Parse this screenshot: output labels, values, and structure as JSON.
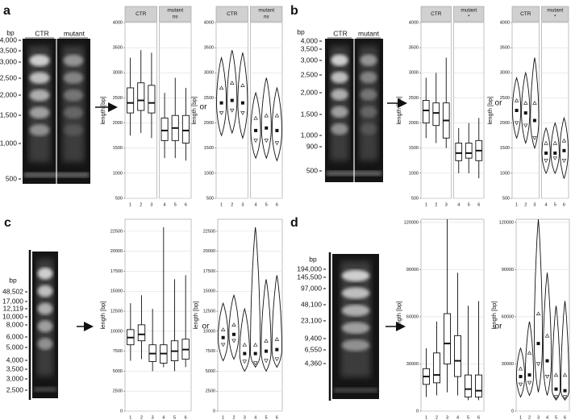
{
  "panels": [
    {
      "label": "a",
      "gel": {
        "unit": "bp",
        "lanes": [
          "CTR",
          "mutant"
        ],
        "ladder": [
          "4,000",
          "3,500",
          "3,000",
          "2,500",
          "2,000",
          "1,500",
          "1,000",
          "500"
        ]
      },
      "connector": "or",
      "chart": {
        "type": "box",
        "y_label": "length [bp]",
        "ylim": [
          500,
          4000
        ],
        "yticks": [
          500,
          1000,
          1500,
          2000,
          2500,
          3000,
          3500,
          4000
        ],
        "categories": [
          "1",
          "2",
          "3",
          "4",
          "5",
          "6"
        ],
        "groups": [
          {
            "name": "CTR"
          },
          {
            "name": "mutant",
            "note": "ns"
          }
        ],
        "boxes": [
          {
            "whisker_low": 1750,
            "q1": 2200,
            "median": 2400,
            "q3": 2700,
            "whisker_high": 3300
          },
          {
            "whisker_low": 1800,
            "q1": 2250,
            "median": 2450,
            "q3": 2800,
            "whisker_high": 3450
          },
          {
            "whisker_low": 1700,
            "q1": 2200,
            "median": 2400,
            "q3": 2750,
            "whisker_high": 3400
          },
          {
            "whisker_low": 1300,
            "q1": 1650,
            "median": 1850,
            "q3": 2100,
            "whisker_high": 2600
          },
          {
            "whisker_low": 1300,
            "q1": 1650,
            "median": 1900,
            "q3": 2150,
            "whisker_high": 2900
          },
          {
            "whisker_low": 1250,
            "q1": 1600,
            "median": 1850,
            "q3": 2150,
            "whisker_high": 2700
          }
        ]
      }
    },
    {
      "label": "b",
      "gel": {
        "unit": "bp",
        "lanes": [
          "CTR",
          "mutant"
        ],
        "ladder": [
          "4,000",
          "3,500",
          "3,000",
          "2,500",
          "2,000",
          "1,500",
          "1,000",
          "900",
          "500"
        ]
      },
      "connector": "or",
      "chart": {
        "type": "box",
        "y_label": "length [bp]",
        "ylim": [
          500,
          4000
        ],
        "yticks": [
          500,
          1000,
          1500,
          2000,
          2500,
          3000,
          3500,
          4000
        ],
        "categories": [
          "1",
          "2",
          "3",
          "4",
          "5",
          "6"
        ],
        "groups": [
          {
            "name": "CTR"
          },
          {
            "name": "mutant",
            "note": "*"
          }
        ],
        "boxes": [
          {
            "whisker_low": 1700,
            "q1": 2000,
            "median": 2250,
            "q3": 2450,
            "whisker_high": 2900
          },
          {
            "whisker_low": 1600,
            "q1": 1950,
            "median": 2200,
            "q3": 2400,
            "whisker_high": 3000
          },
          {
            "whisker_low": 1500,
            "q1": 1700,
            "median": 2050,
            "q3": 2400,
            "whisker_high": 3300
          },
          {
            "whisker_low": 1000,
            "q1": 1250,
            "median": 1400,
            "q3": 1600,
            "whisker_high": 1900
          },
          {
            "whisker_low": 1000,
            "q1": 1300,
            "median": 1400,
            "q3": 1600,
            "whisker_high": 2000
          },
          {
            "whisker_low": 900,
            "q1": 1250,
            "median": 1450,
            "q3": 1650,
            "whisker_high": 2100
          }
        ]
      }
    },
    {
      "label": "c",
      "gel": {
        "unit": "bp",
        "ladder": [
          "48,502",
          "17,000",
          "12,119",
          "10,000",
          "8,000",
          "6,000",
          "5,000",
          "4,000",
          "3,500",
          "3,000",
          "2,500"
        ]
      },
      "connector": "or",
      "chart": {
        "type": "box",
        "y_label": "length [bp]",
        "ylim": [
          0,
          24000
        ],
        "yticks": [
          0,
          2500,
          5000,
          7500,
          10000,
          12500,
          15000,
          17500,
          20000,
          22500
        ],
        "categories": [
          "1",
          "2",
          "3",
          "4",
          "5",
          "6"
        ],
        "boxes": [
          {
            "whisker_low": 6300,
            "q1": 8300,
            "median": 9200,
            "q3": 10200,
            "whisker_high": 13500
          },
          {
            "whisker_low": 6500,
            "q1": 8800,
            "median": 9600,
            "q3": 10800,
            "whisker_high": 14500
          },
          {
            "whisker_low": 5000,
            "q1": 6200,
            "median": 7200,
            "q3": 8300,
            "whisker_high": 12800
          },
          {
            "whisker_low": 5500,
            "q1": 6000,
            "median": 7200,
            "q3": 8300,
            "whisker_high": 23000
          },
          {
            "whisker_low": 5000,
            "q1": 6300,
            "median": 7500,
            "q3": 8800,
            "whisker_high": 16500
          },
          {
            "whisker_low": 5500,
            "q1": 6500,
            "median": 7700,
            "q3": 9000,
            "whisker_high": 17000
          }
        ]
      }
    },
    {
      "label": "d",
      "gel": {
        "unit": "bp",
        "ladder": [
          "194,000",
          "145,500",
          "97,000",
          "48,100",
          "23,100",
          "9,400",
          "6,550",
          "4,360"
        ]
      },
      "connector": "or",
      "chart": {
        "type": "box",
        "y_label": "length [bp]",
        "ylim": [
          0,
          122000
        ],
        "yticks": [
          0,
          30000,
          60000,
          90000,
          120000
        ],
        "categories": [
          "1",
          "2",
          "3",
          "4",
          "5",
          "6"
        ],
        "boxes": [
          {
            "whisker_low": 9000,
            "q1": 17000,
            "median": 22000,
            "q3": 27000,
            "whisker_high": 40000
          },
          {
            "whisker_low": 10000,
            "q1": 18000,
            "median": 23000,
            "q3": 37000,
            "whisker_high": 57000
          },
          {
            "whisker_low": 12000,
            "q1": 30000,
            "median": 43000,
            "q3": 62000,
            "whisker_high": 122000
          },
          {
            "whisker_low": 10000,
            "q1": 22000,
            "median": 32000,
            "q3": 48000,
            "whisker_high": 88000
          },
          {
            "whisker_low": 7000,
            "q1": 9000,
            "median": 14000,
            "q3": 23000,
            "whisker_high": 67000
          },
          {
            "whisker_low": 7000,
            "q1": 9000,
            "median": 13000,
            "q3": 23000,
            "whisker_high": 70000
          }
        ]
      }
    }
  ]
}
